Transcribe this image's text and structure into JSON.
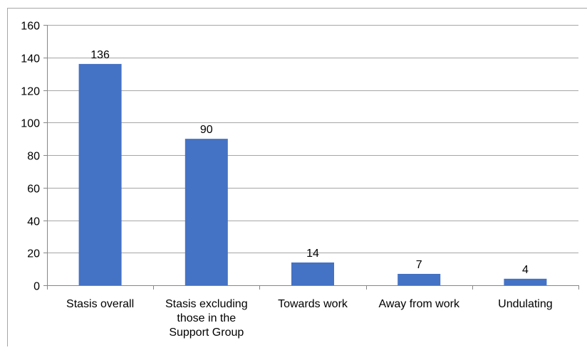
{
  "chart_data": {
    "type": "bar",
    "title": "",
    "xlabel": "",
    "ylabel": "",
    "categories": [
      [
        "Stasis overall"
      ],
      [
        "Stasis excluding",
        "those in the",
        "Support Group"
      ],
      [
        "Towards work"
      ],
      [
        "Away from work"
      ],
      [
        "Undulating"
      ]
    ],
    "values": [
      136,
      90,
      14,
      7,
      4
    ],
    "data_labels": [
      "136",
      "90",
      "14",
      "7",
      "4"
    ],
    "ylim": [
      0,
      160
    ],
    "yticks": [
      0,
      20,
      40,
      60,
      80,
      100,
      120,
      140,
      160
    ],
    "grid": true,
    "legend": "none",
    "colors": {
      "bar": "#4472C4",
      "grid": "#A6A6A6",
      "axis": "#868686",
      "border": "#A6A6A6"
    }
  }
}
